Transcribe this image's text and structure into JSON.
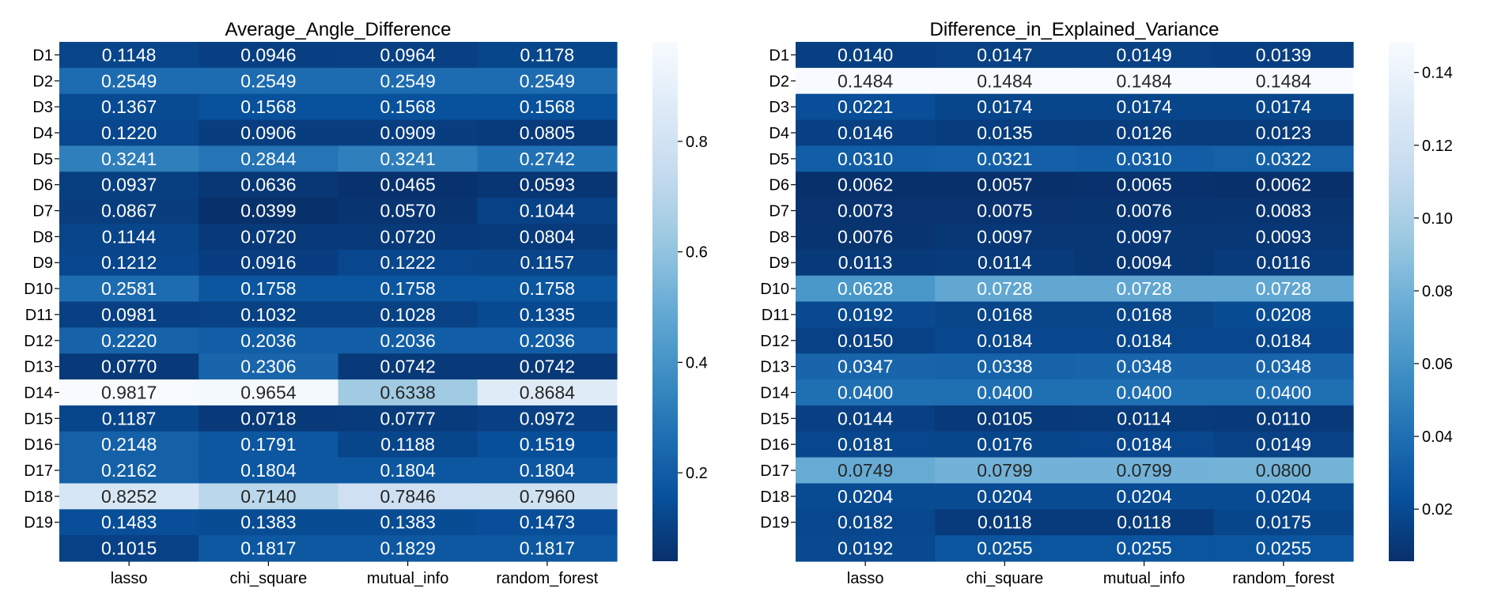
{
  "chart_data": [
    {
      "type": "heatmap",
      "title": "Average_Angle_Difference",
      "colormap": "Blues_r",
      "rows": [
        "D1",
        "D2",
        "D3",
        "D4",
        "D5",
        "D6",
        "D7",
        "D8",
        "D9",
        "D10",
        "D11",
        "D12",
        "D13",
        "D14",
        "D15",
        "D16",
        "D17",
        "D18",
        "D19",
        ""
      ],
      "columns": [
        "lasso",
        "chi_square",
        "mutual_info",
        "random_forest"
      ],
      "values": [
        [
          0.1148,
          0.0946,
          0.0964,
          0.1178
        ],
        [
          0.2549,
          0.2549,
          0.2549,
          0.2549
        ],
        [
          0.1367,
          0.1568,
          0.1568,
          0.1568
        ],
        [
          0.122,
          0.0906,
          0.0909,
          0.0805
        ],
        [
          0.3241,
          0.2844,
          0.3241,
          0.2742
        ],
        [
          0.0937,
          0.0636,
          0.0465,
          0.0593
        ],
        [
          0.0867,
          0.0399,
          0.057,
          0.1044
        ],
        [
          0.1144,
          0.072,
          0.072,
          0.0804
        ],
        [
          0.1212,
          0.0916,
          0.1222,
          0.1157
        ],
        [
          0.2581,
          0.1758,
          0.1758,
          0.1758
        ],
        [
          0.0981,
          0.1032,
          0.1028,
          0.1335
        ],
        [
          0.222,
          0.2036,
          0.2036,
          0.2036
        ],
        [
          0.077,
          0.2306,
          0.0742,
          0.0742
        ],
        [
          0.9817,
          0.9654,
          0.6338,
          0.8684
        ],
        [
          0.1187,
          0.0718,
          0.0777,
          0.0972
        ],
        [
          0.2148,
          0.1791,
          0.1188,
          0.1519
        ],
        [
          0.2162,
          0.1804,
          0.1804,
          0.1804
        ],
        [
          0.8252,
          0.714,
          0.7846,
          0.796
        ],
        [
          0.1483,
          0.1383,
          0.1383,
          0.1473
        ],
        [
          0.1015,
          0.1817,
          0.1829,
          0.1817
        ]
      ],
      "colorbar": {
        "vmin": 0.04,
        "vmax": 0.98,
        "ticks": [
          0.2,
          0.4,
          0.6,
          0.8
        ],
        "tick_labels": [
          "0.2",
          "0.4",
          "0.6",
          "0.8"
        ]
      }
    },
    {
      "type": "heatmap",
      "title": "Difference_in_Explained_Variance",
      "colormap": "Blues_r",
      "rows": [
        "D1",
        "D2",
        "D3",
        "D4",
        "D5",
        "D6",
        "D7",
        "D8",
        "D9",
        "D10",
        "D11",
        "D12",
        "D13",
        "D14",
        "D15",
        "D16",
        "D17",
        "D18",
        "D19",
        ""
      ],
      "columns": [
        "lasso",
        "chi_square",
        "mutual_info",
        "random_forest"
      ],
      "values": [
        [
          0.014,
          0.0147,
          0.0149,
          0.0139
        ],
        [
          0.1484,
          0.1484,
          0.1484,
          0.1484
        ],
        [
          0.0221,
          0.0174,
          0.0174,
          0.0174
        ],
        [
          0.0146,
          0.0135,
          0.0126,
          0.0123
        ],
        [
          0.031,
          0.0321,
          0.031,
          0.0322
        ],
        [
          0.0062,
          0.0057,
          0.0065,
          0.0062
        ],
        [
          0.0073,
          0.0075,
          0.0076,
          0.0083
        ],
        [
          0.0076,
          0.0097,
          0.0097,
          0.0093
        ],
        [
          0.0113,
          0.0114,
          0.0094,
          0.0116
        ],
        [
          0.0628,
          0.0728,
          0.0728,
          0.0728
        ],
        [
          0.0192,
          0.0168,
          0.0168,
          0.0208
        ],
        [
          0.015,
          0.0184,
          0.0184,
          0.0184
        ],
        [
          0.0347,
          0.0338,
          0.0348,
          0.0348
        ],
        [
          0.04,
          0.04,
          0.04,
          0.04
        ],
        [
          0.0144,
          0.0105,
          0.0114,
          0.011
        ],
        [
          0.0181,
          0.0176,
          0.0184,
          0.0149
        ],
        [
          0.0749,
          0.0799,
          0.0799,
          0.08
        ],
        [
          0.0204,
          0.0204,
          0.0204,
          0.0204
        ],
        [
          0.0182,
          0.0118,
          0.0118,
          0.0175
        ],
        [
          0.0192,
          0.0255,
          0.0255,
          0.0255
        ]
      ],
      "colorbar": {
        "vmin": 0.0057,
        "vmax": 0.1484,
        "ticks": [
          0.02,
          0.04,
          0.06,
          0.08,
          0.1,
          0.12,
          0.14
        ],
        "tick_labels": [
          "0.02",
          "0.04",
          "0.06",
          "0.08",
          "0.10",
          "0.12",
          "0.14"
        ]
      }
    }
  ]
}
